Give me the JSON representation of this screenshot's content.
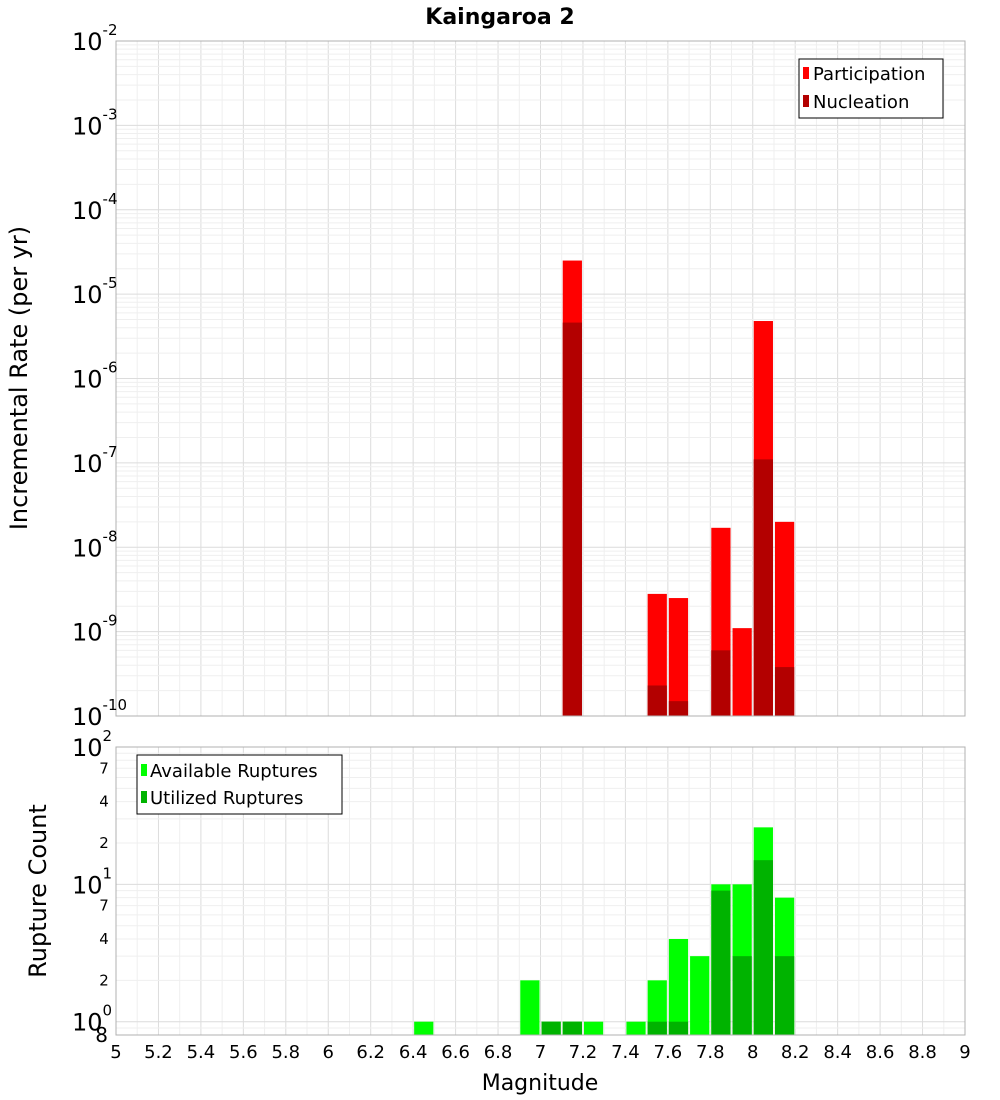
{
  "chart_data": [
    {
      "type": "bar",
      "title": "Kaingaroa 2",
      "ylabel": "Incremental Rate (per yr)",
      "xlabel": "",
      "xlim": [
        5,
        9
      ],
      "ylim": [
        1e-10,
        0.01
      ],
      "yscale": "log",
      "legend_placement": "top-right",
      "grid": true,
      "bar_width": 0.1,
      "series": [
        {
          "name": "Participation",
          "color": "#ff0000",
          "points": [
            {
              "x": 7.15,
              "y": 2.5e-05
            },
            {
              "x": 7.55,
              "y": 2.8e-09
            },
            {
              "x": 7.65,
              "y": 2.5e-09
            },
            {
              "x": 7.85,
              "y": 1.7e-08
            },
            {
              "x": 7.95,
              "y": 1.1e-09
            },
            {
              "x": 8.05,
              "y": 4.8e-06
            },
            {
              "x": 8.15,
              "y": 2e-08
            }
          ]
        },
        {
          "name": "Nucleation",
          "color": "#b30000",
          "points": [
            {
              "x": 7.15,
              "y": 4.6e-06
            },
            {
              "x": 7.55,
              "y": 2.3e-10
            },
            {
              "x": 7.65,
              "y": 1.5e-10
            },
            {
              "x": 7.85,
              "y": 6e-10
            },
            {
              "x": 8.05,
              "y": 1.1e-07
            },
            {
              "x": 8.15,
              "y": 3.8e-10
            }
          ]
        }
      ]
    },
    {
      "type": "bar",
      "title": "",
      "ylabel": "Rupture Count",
      "xlabel": "Magnitude",
      "xlim": [
        5,
        9
      ],
      "ylim": [
        0.8,
        100
      ],
      "yscale": "log",
      "bottom_tick_label": "8",
      "legend_placement": "top-left",
      "grid": true,
      "bar_width": 0.1,
      "series": [
        {
          "name": "Available Ruptures",
          "color": "#00ff00",
          "points": [
            {
              "x": 6.45,
              "y": 1
            },
            {
              "x": 6.95,
              "y": 2
            },
            {
              "x": 7.05,
              "y": 1
            },
            {
              "x": 7.15,
              "y": 1
            },
            {
              "x": 7.25,
              "y": 1
            },
            {
              "x": 7.45,
              "y": 1
            },
            {
              "x": 7.55,
              "y": 2
            },
            {
              "x": 7.65,
              "y": 4
            },
            {
              "x": 7.75,
              "y": 3
            },
            {
              "x": 7.85,
              "y": 10
            },
            {
              "x": 7.95,
              "y": 10
            },
            {
              "x": 8.05,
              "y": 26
            },
            {
              "x": 8.15,
              "y": 8
            }
          ]
        },
        {
          "name": "Utilized Ruptures",
          "color": "#00b300",
          "points": [
            {
              "x": 7.05,
              "y": 1
            },
            {
              "x": 7.15,
              "y": 1
            },
            {
              "x": 7.55,
              "y": 1
            },
            {
              "x": 7.65,
              "y": 1
            },
            {
              "x": 7.85,
              "y": 9
            },
            {
              "x": 7.95,
              "y": 3
            },
            {
              "x": 8.05,
              "y": 15
            },
            {
              "x": 8.15,
              "y": 3
            }
          ]
        }
      ],
      "x_ticks": [
        "5",
        "5.2",
        "5.4",
        "5.6",
        "5.8",
        "6",
        "6.2",
        "6.4",
        "6.6",
        "6.8",
        "7",
        "7.2",
        "7.4",
        "7.6",
        "7.8",
        "8",
        "8.2",
        "8.4",
        "8.6",
        "8.8",
        "9"
      ]
    }
  ],
  "top_y_ticks": [
    {
      "mant": "10",
      "exp": "-2"
    },
    {
      "mant": "10",
      "exp": "-3"
    },
    {
      "mant": "10",
      "exp": "-4"
    },
    {
      "mant": "10",
      "exp": "-5"
    },
    {
      "mant": "10",
      "exp": "-6"
    },
    {
      "mant": "10",
      "exp": "-7"
    },
    {
      "mant": "10",
      "exp": "-8"
    },
    {
      "mant": "10",
      "exp": "-9"
    },
    {
      "mant": "10",
      "exp": "-10"
    }
  ],
  "bottom_y_ticks": {
    "major": [
      {
        "mant": "10",
        "exp": "2",
        "value": 100
      },
      {
        "mant": "10",
        "exp": "1",
        "value": 10
      },
      {
        "mant": "10",
        "exp": "0",
        "value": 1
      }
    ],
    "minor": [
      {
        "label": "7",
        "value": 70
      },
      {
        "label": "4",
        "value": 40
      },
      {
        "label": "2",
        "value": 20
      },
      {
        "label": "7",
        "value": 7
      },
      {
        "label": "4",
        "value": 4
      },
      {
        "label": "2",
        "value": 2
      }
    ]
  }
}
